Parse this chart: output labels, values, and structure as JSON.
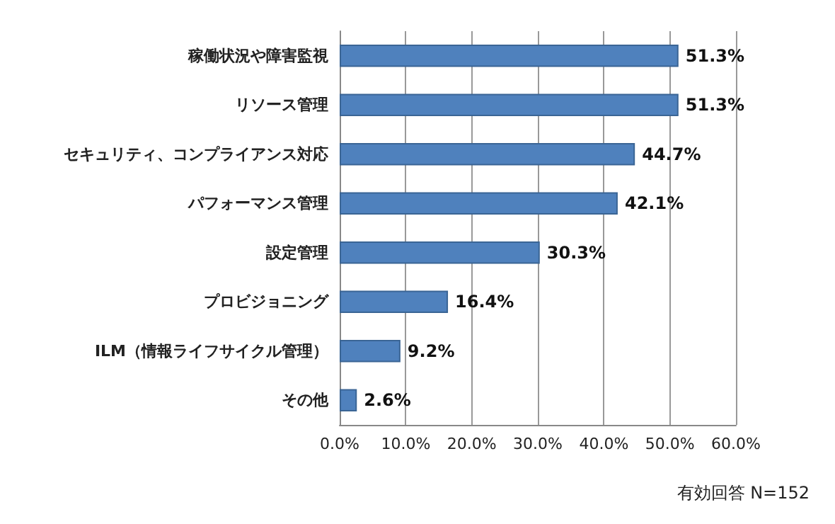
{
  "chart_data": {
    "type": "bar",
    "orientation": "horizontal",
    "categories": [
      "稼働状況や障害監視",
      "リソース管理",
      "セキュリティ、コンプライアンス対応",
      "パフォーマンス管理",
      "設定管理",
      "プロビジョニング",
      "ILM（情報ライフサイクル管理）",
      "その他"
    ],
    "values": [
      51.3,
      51.3,
      44.7,
      42.1,
      30.3,
      16.4,
      9.2,
      2.6
    ],
    "value_labels": [
      "51.3%",
      "51.3%",
      "44.7%",
      "42.1%",
      "30.3%",
      "16.4%",
      "9.2%",
      "2.6%"
    ],
    "color": "#4f81bd",
    "xlim": [
      0,
      60
    ],
    "xticks": [
      {
        "value": 0,
        "label": "0.0%"
      },
      {
        "value": 10,
        "label": "10.0%"
      },
      {
        "value": 20,
        "label": "20.0%"
      },
      {
        "value": 30,
        "label": "30.0%"
      },
      {
        "value": 40,
        "label": "40.0%"
      },
      {
        "value": 50,
        "label": "50.0%"
      },
      {
        "value": 60,
        "label": "60.0%"
      }
    ],
    "grid": "x",
    "annotations": [
      "有効回答 N=152"
    ]
  }
}
